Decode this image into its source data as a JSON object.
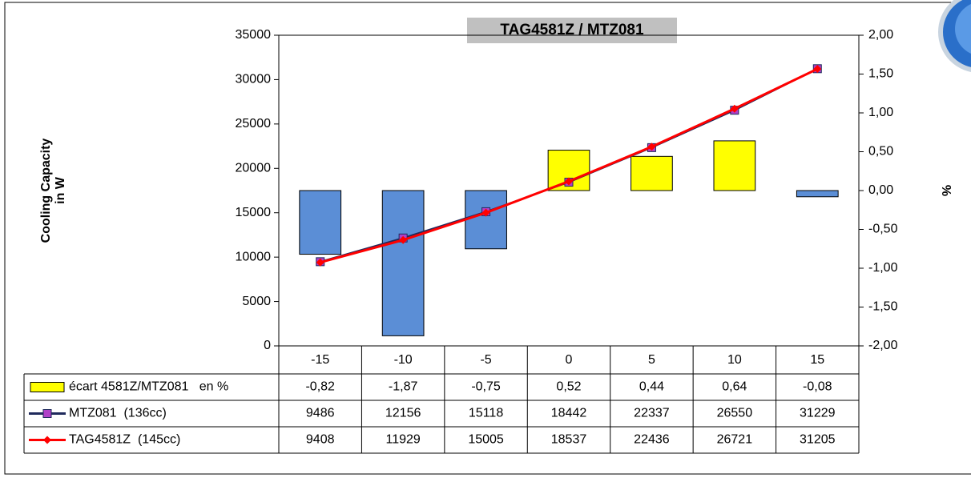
{
  "chart_data": {
    "type": "combo",
    "title": "TAG4581Z / MTZ081",
    "y_label": [
      "Cooling Capacity",
      "in W"
    ],
    "y2_label": "%",
    "categories": [
      "-15",
      "-10",
      "-5",
      "0",
      "5",
      "10",
      "15"
    ],
    "ylim": [
      0,
      35000
    ],
    "yticks": [
      0,
      5000,
      10000,
      15000,
      20000,
      25000,
      30000,
      35000
    ],
    "y2lim": [
      -2,
      2
    ],
    "y2ticks": [
      {
        "value": -2,
        "label": "-2,00"
      },
      {
        "value": -1.5,
        "label": "-1,50"
      },
      {
        "value": -1,
        "label": "-1,00"
      },
      {
        "value": -0.5,
        "label": "-0,50"
      },
      {
        "value": 0,
        "label": "0,00"
      },
      {
        "value": 0.5,
        "label": "0,50"
      },
      {
        "value": 1,
        "label": "1,00"
      },
      {
        "value": 1.5,
        "label": "1,50"
      },
      {
        "value": 2,
        "label": "2,00"
      }
    ],
    "data_table": true,
    "series": [
      {
        "name": "écart 4581Z/MTZ081   en %",
        "type": "bar",
        "axis": "y2",
        "color": "#ffff00",
        "negative_color": "#5b8ed6",
        "values": [
          -0.82,
          -1.87,
          -0.75,
          0.52,
          0.44,
          0.64,
          -0.08
        ],
        "value_labels": [
          "-0,82",
          "-1,87",
          "-0,75",
          "0,52",
          "0,44",
          "0,64",
          "-0,08"
        ]
      },
      {
        "name": "MTZ081  (136cc)",
        "type": "line",
        "color": "#1f2a5c",
        "marker": "square",
        "marker_color": "#b040c8",
        "values": [
          9486,
          12156,
          15118,
          18442,
          22337,
          26550,
          31229
        ]
      },
      {
        "name": "TAG4581Z  (145cc)",
        "type": "line",
        "color": "#ff0000",
        "marker": "diamond",
        "marker_color": "#ff0000",
        "values": [
          9408,
          11929,
          15005,
          18537,
          22436,
          26721,
          31205
        ]
      }
    ]
  }
}
